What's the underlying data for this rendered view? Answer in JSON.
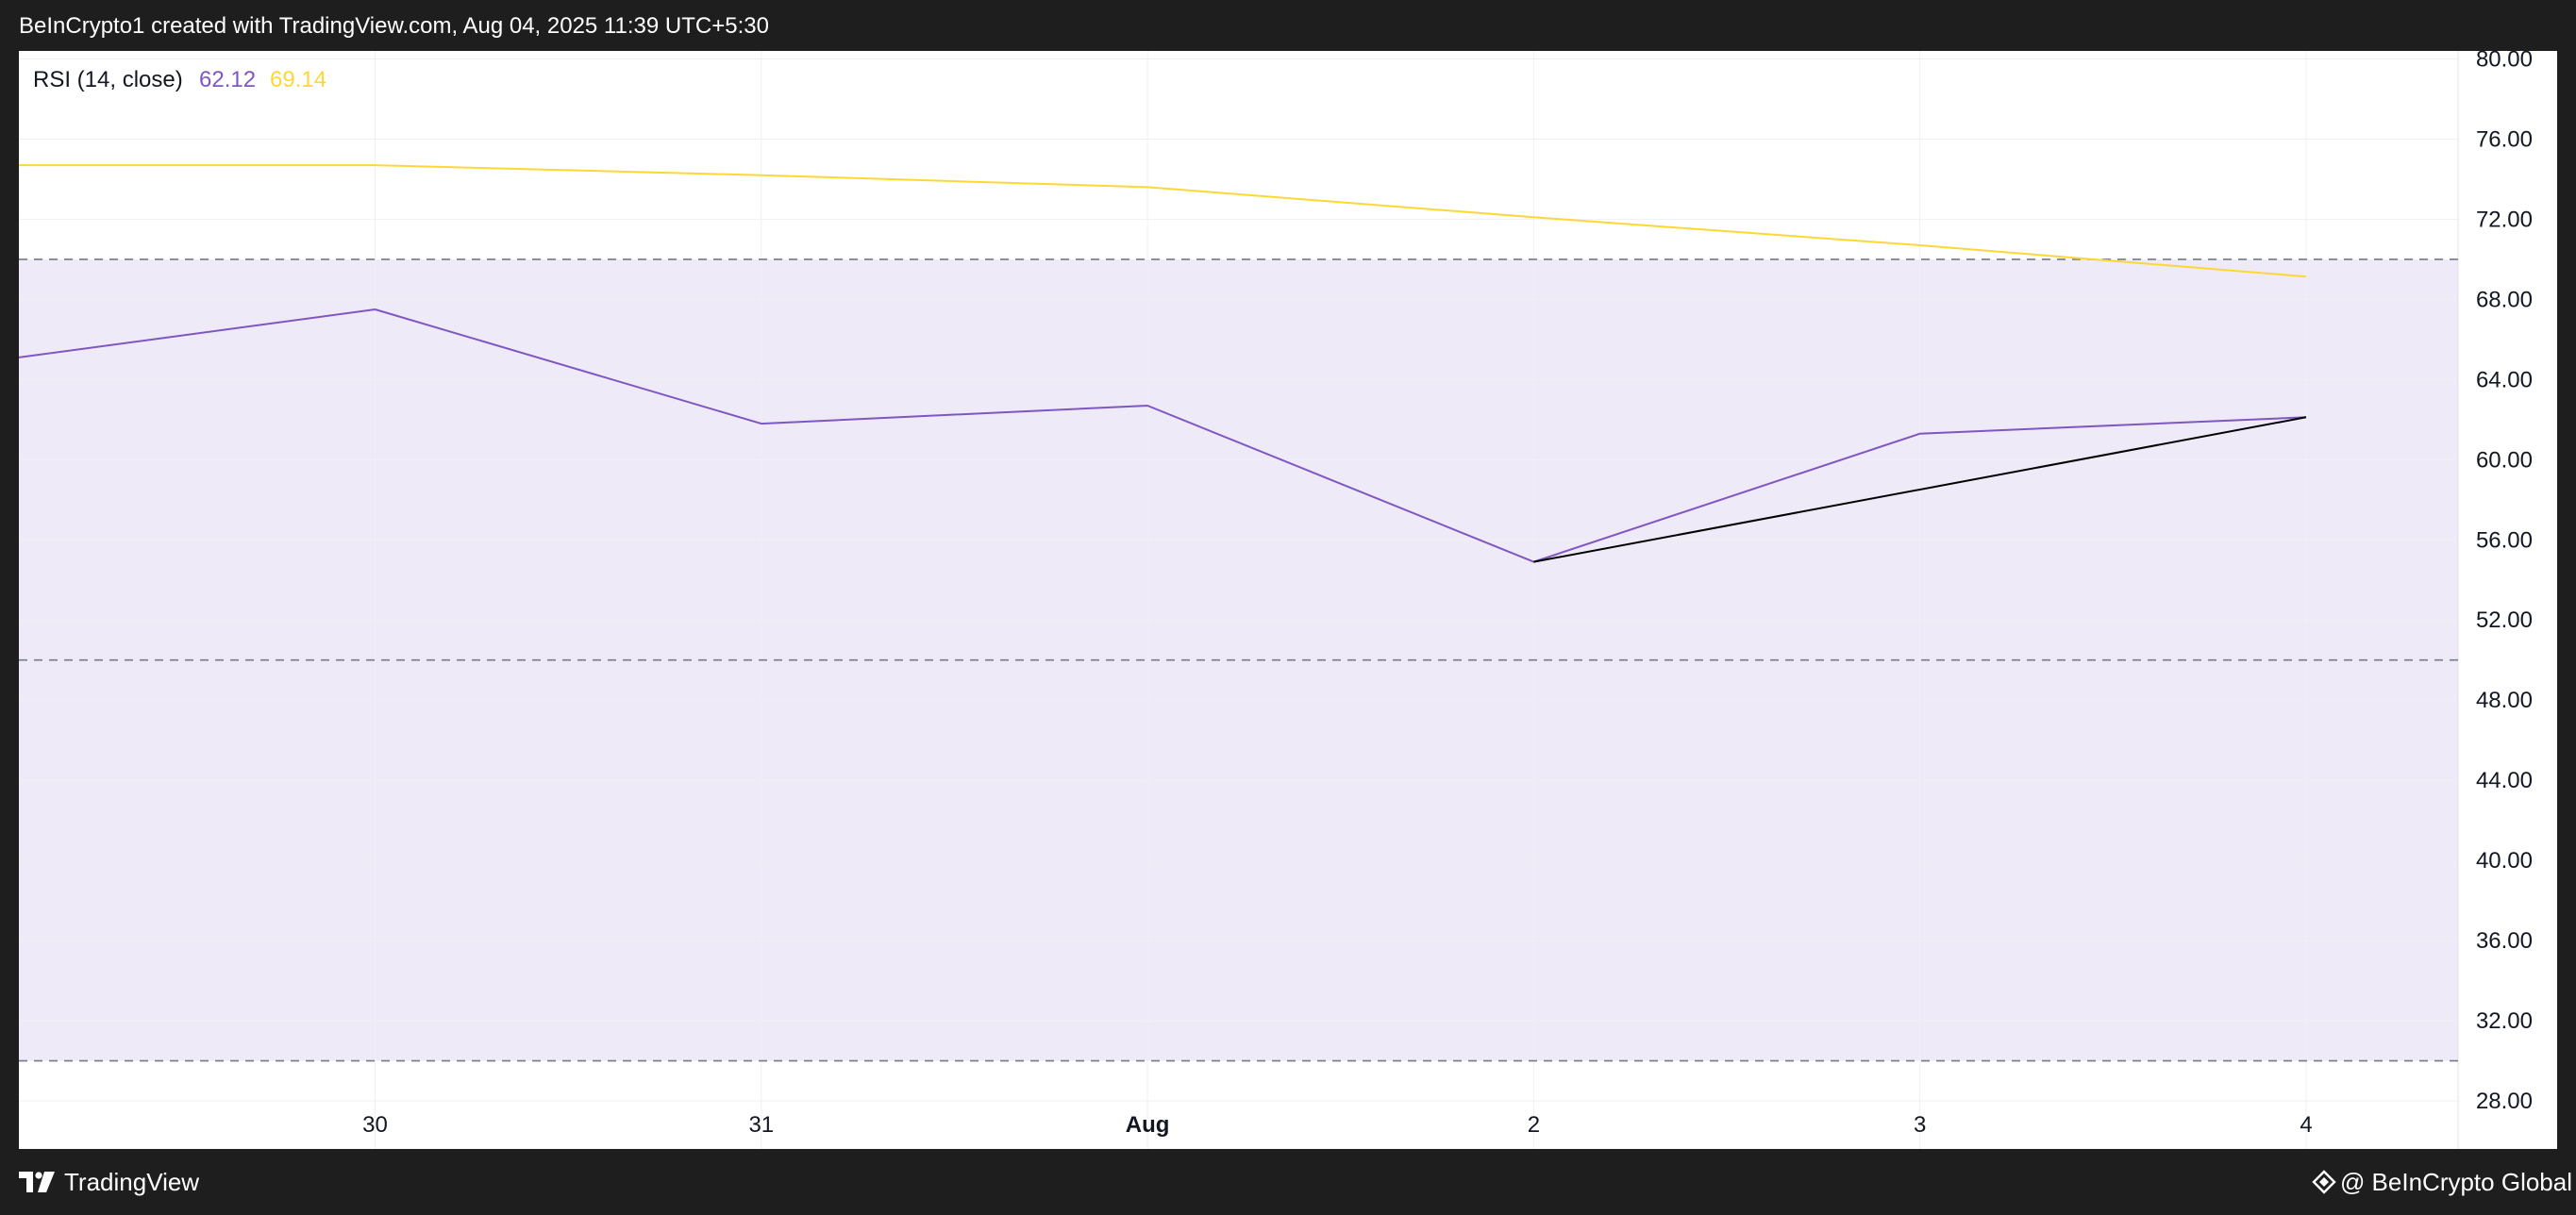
{
  "header": {
    "text": "BeInCrypto1 created with TradingView.com, Aug 04, 2025 11:39 UTC+5:30"
  },
  "legend": {
    "label": "RSI (14, close)",
    "rsi_value": "62.12",
    "ma_value": "69.14"
  },
  "footer": {
    "brand": "TradingView",
    "credit": "@ BeInCrypto Global"
  },
  "colors": {
    "rsi_line": "#7e57c2",
    "ma_line": "#fdd835",
    "band_fill": "#efeaf7",
    "trendline": "#000000",
    "level_line": "#787b86",
    "grid": "#f0f0f3"
  },
  "chart_data": {
    "type": "line",
    "title": "",
    "x_tick_labels": [
      "30",
      "31",
      "Aug",
      "2",
      "3",
      "4"
    ],
    "y_tick_labels": [
      "80.00",
      "76.00",
      "72.00",
      "68.00",
      "64.00",
      "60.00",
      "56.00",
      "52.00",
      "48.00",
      "44.00",
      "40.00",
      "36.00",
      "32.00",
      "28.00"
    ],
    "ylim": [
      25.6,
      80.4
    ],
    "x": [
      "Jul 29",
      "30",
      "31",
      "Aug",
      "2",
      "3",
      "4"
    ],
    "series": [
      {
        "name": "RSI (14, close)",
        "values": [
          64.9,
          67.5,
          61.8,
          62.7,
          54.9,
          61.3,
          62.12
        ]
      },
      {
        "name": "",
        "values": [
          74.7,
          74.7,
          74.2,
          73.6,
          72.1,
          70.7,
          69.14
        ]
      }
    ],
    "levels": [
      70,
      50,
      30
    ],
    "trendline": {
      "from": {
        "x": "2",
        "y": 54.9
      },
      "to": {
        "x": "4",
        "y": 62.12
      }
    },
    "grid": true,
    "legend_position": "top-left"
  }
}
